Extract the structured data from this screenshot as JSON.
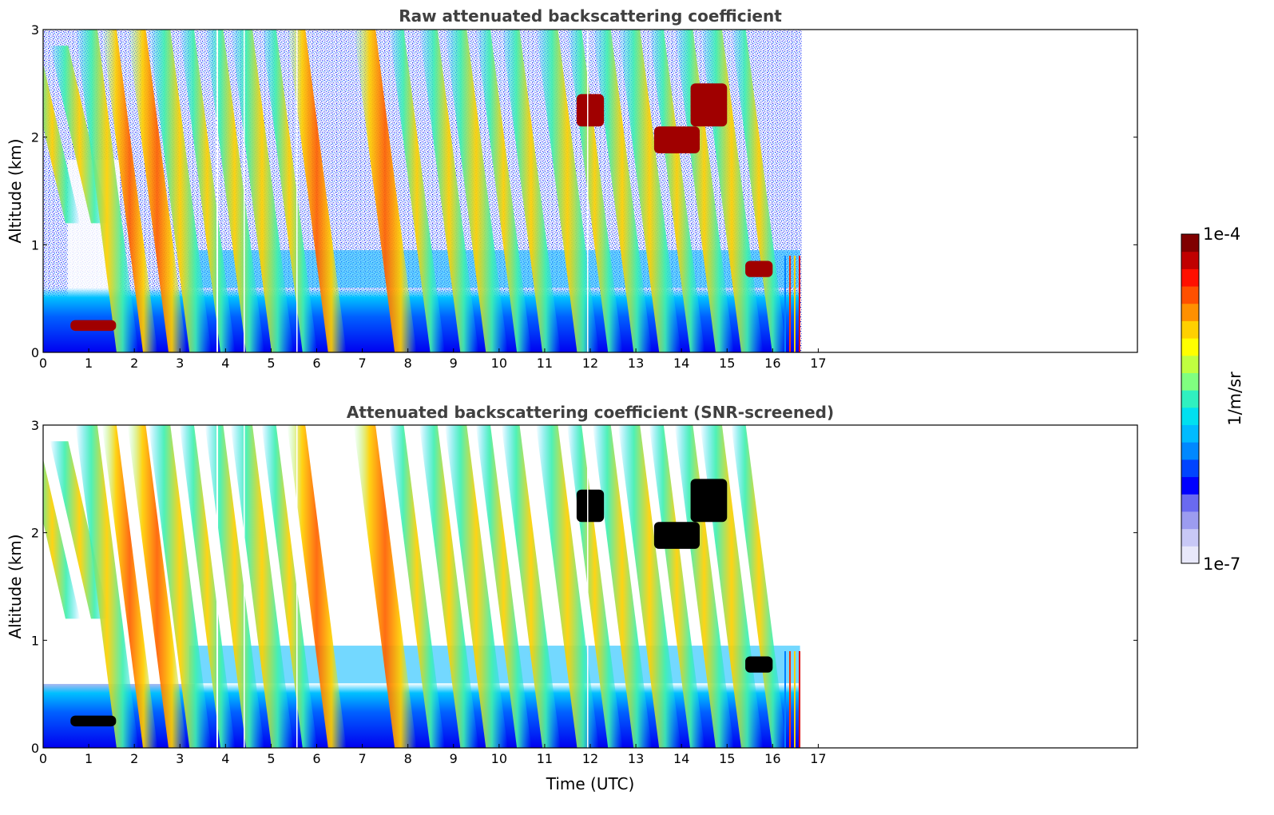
{
  "chart_data": [
    {
      "type": "heatmap",
      "title": "Raw attenuated backscattering coefficient",
      "xlabel": "",
      "ylabel": "Altitude (km)",
      "xlim": [
        0,
        24
      ],
      "ylim": [
        0,
        3
      ],
      "x_ticks": [
        0,
        1,
        2,
        3,
        4,
        5,
        6,
        7,
        8,
        9,
        10,
        11,
        12,
        13,
        14,
        15,
        16,
        17
      ],
      "y_ticks": [
        0,
        1,
        2,
        3
      ],
      "data_extent_hours": [
        0,
        16.6
      ],
      "colormap": "jet",
      "color_scale": "log",
      "features": [
        {
          "kind": "fall-streaks",
          "times_h": [
            0.3,
            0.9,
            1.5,
            2.0,
            2.6,
            3.1,
            3.7,
            4.3,
            4.9,
            5.5,
            6.1,
            7.6,
            8.3,
            9.0,
            9.6,
            10.2,
            10.8,
            11.6,
            12.2,
            12.8,
            13.4,
            14.0,
            14.6,
            15.2,
            15.8
          ]
        },
        {
          "kind": "boundary-layer",
          "altitude_km": [
            0,
            0.6
          ]
        },
        {
          "kind": "liquid-layer",
          "time_h": [
            0.6,
            1.6
          ],
          "altitude_km": [
            0.2,
            0.3
          ]
        },
        {
          "kind": "liquid-layer",
          "time_h": [
            11.7,
            12.3
          ],
          "altitude_km": [
            2.1,
            2.4
          ]
        },
        {
          "kind": "liquid-layer",
          "time_h": [
            13.4,
            14.4
          ],
          "altitude_km": [
            1.85,
            2.1
          ]
        },
        {
          "kind": "liquid-layer",
          "time_h": [
            14.2,
            15.0
          ],
          "altitude_km": [
            2.1,
            2.5
          ]
        },
        {
          "kind": "liquid-layer",
          "time_h": [
            15.4,
            16.0
          ],
          "altitude_km": [
            0.7,
            0.85
          ]
        }
      ]
    },
    {
      "type": "heatmap",
      "title": "Attenuated backscattering coefficient (SNR-screened)",
      "xlabel": "Time (UTC)",
      "ylabel": "Altitude (km)",
      "xlim": [
        0,
        24
      ],
      "ylim": [
        0,
        3
      ],
      "x_ticks": [
        0,
        1,
        2,
        3,
        4,
        5,
        6,
        7,
        8,
        9,
        10,
        11,
        12,
        13,
        14,
        15,
        16,
        17
      ],
      "y_ticks": [
        0,
        1,
        2,
        3
      ],
      "data_extent_hours": [
        0,
        16.6
      ],
      "colormap": "jet",
      "color_scale": "log",
      "saturated_color": "#000000"
    }
  ],
  "colorbar": {
    "min_label": "1e-7",
    "max_label": "1e-4",
    "label": "1/m/sr",
    "colors": [
      "#e8e8fa",
      "#c8c8f6",
      "#9c9cf0",
      "#6a6af0",
      "#0000ff",
      "#0044ff",
      "#0088ff",
      "#00bbff",
      "#00e0f0",
      "#30f0c0",
      "#80ff80",
      "#c0ff40",
      "#ffff00",
      "#ffd000",
      "#ff9000",
      "#ff5000",
      "#ff1000",
      "#c00000",
      "#800000"
    ]
  }
}
